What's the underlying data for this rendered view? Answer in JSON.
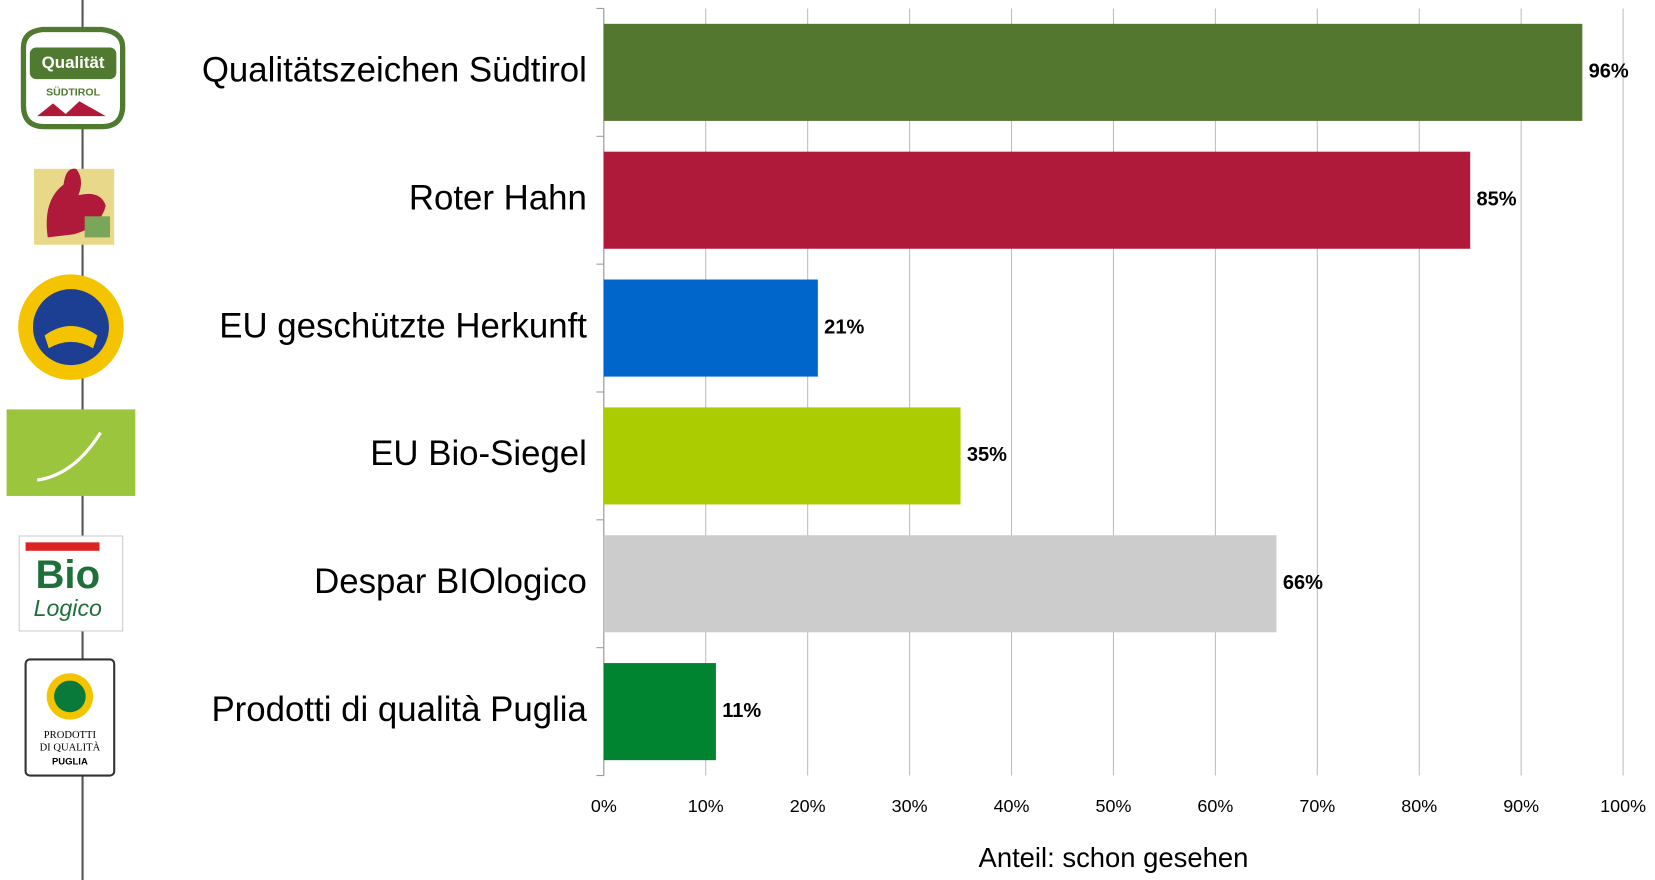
{
  "logos": [
    "Qualität",
    "SÜDTIROL",
    "Bio",
    "Logico",
    "PRODOTTI",
    "DI QUALITÀ",
    "PUGLIA"
  ],
  "chart_data": {
    "type": "bar",
    "orientation": "horizontal",
    "x_label": "Anteil: schon gesehen",
    "categories": [
      "Qualitätszeichen Südtirol",
      "Roter Hahn",
      "EU geschützte Herkunft",
      "EU Bio-Siegel",
      "Despar BIOlogico",
      "Prodotti di qualità Puglia"
    ],
    "values": [
      96,
      85,
      21,
      35,
      66,
      11
    ],
    "value_labels": [
      "96%",
      "85%",
      "21%",
      "35%",
      "66%",
      "11%"
    ],
    "colors": [
      "#54772f",
      "#b01a3a",
      "#0066cc",
      "#aacc00",
      "#cccccc",
      "#008430"
    ],
    "xlim": [
      0,
      100
    ],
    "xticks": [
      {
        "value": 0,
        "label": "0%"
      },
      {
        "value": 10,
        "label": "10%"
      },
      {
        "value": 20,
        "label": "20%"
      },
      {
        "value": 30,
        "label": "30%"
      },
      {
        "value": 40,
        "label": "40%"
      },
      {
        "value": 50,
        "label": "50%"
      },
      {
        "value": 60,
        "label": "60%"
      },
      {
        "value": 70,
        "label": "70%"
      },
      {
        "value": 80,
        "label": "80%"
      },
      {
        "value": 90,
        "label": "90%"
      },
      {
        "value": 100,
        "label": "100%"
      }
    ],
    "grid": true
  }
}
